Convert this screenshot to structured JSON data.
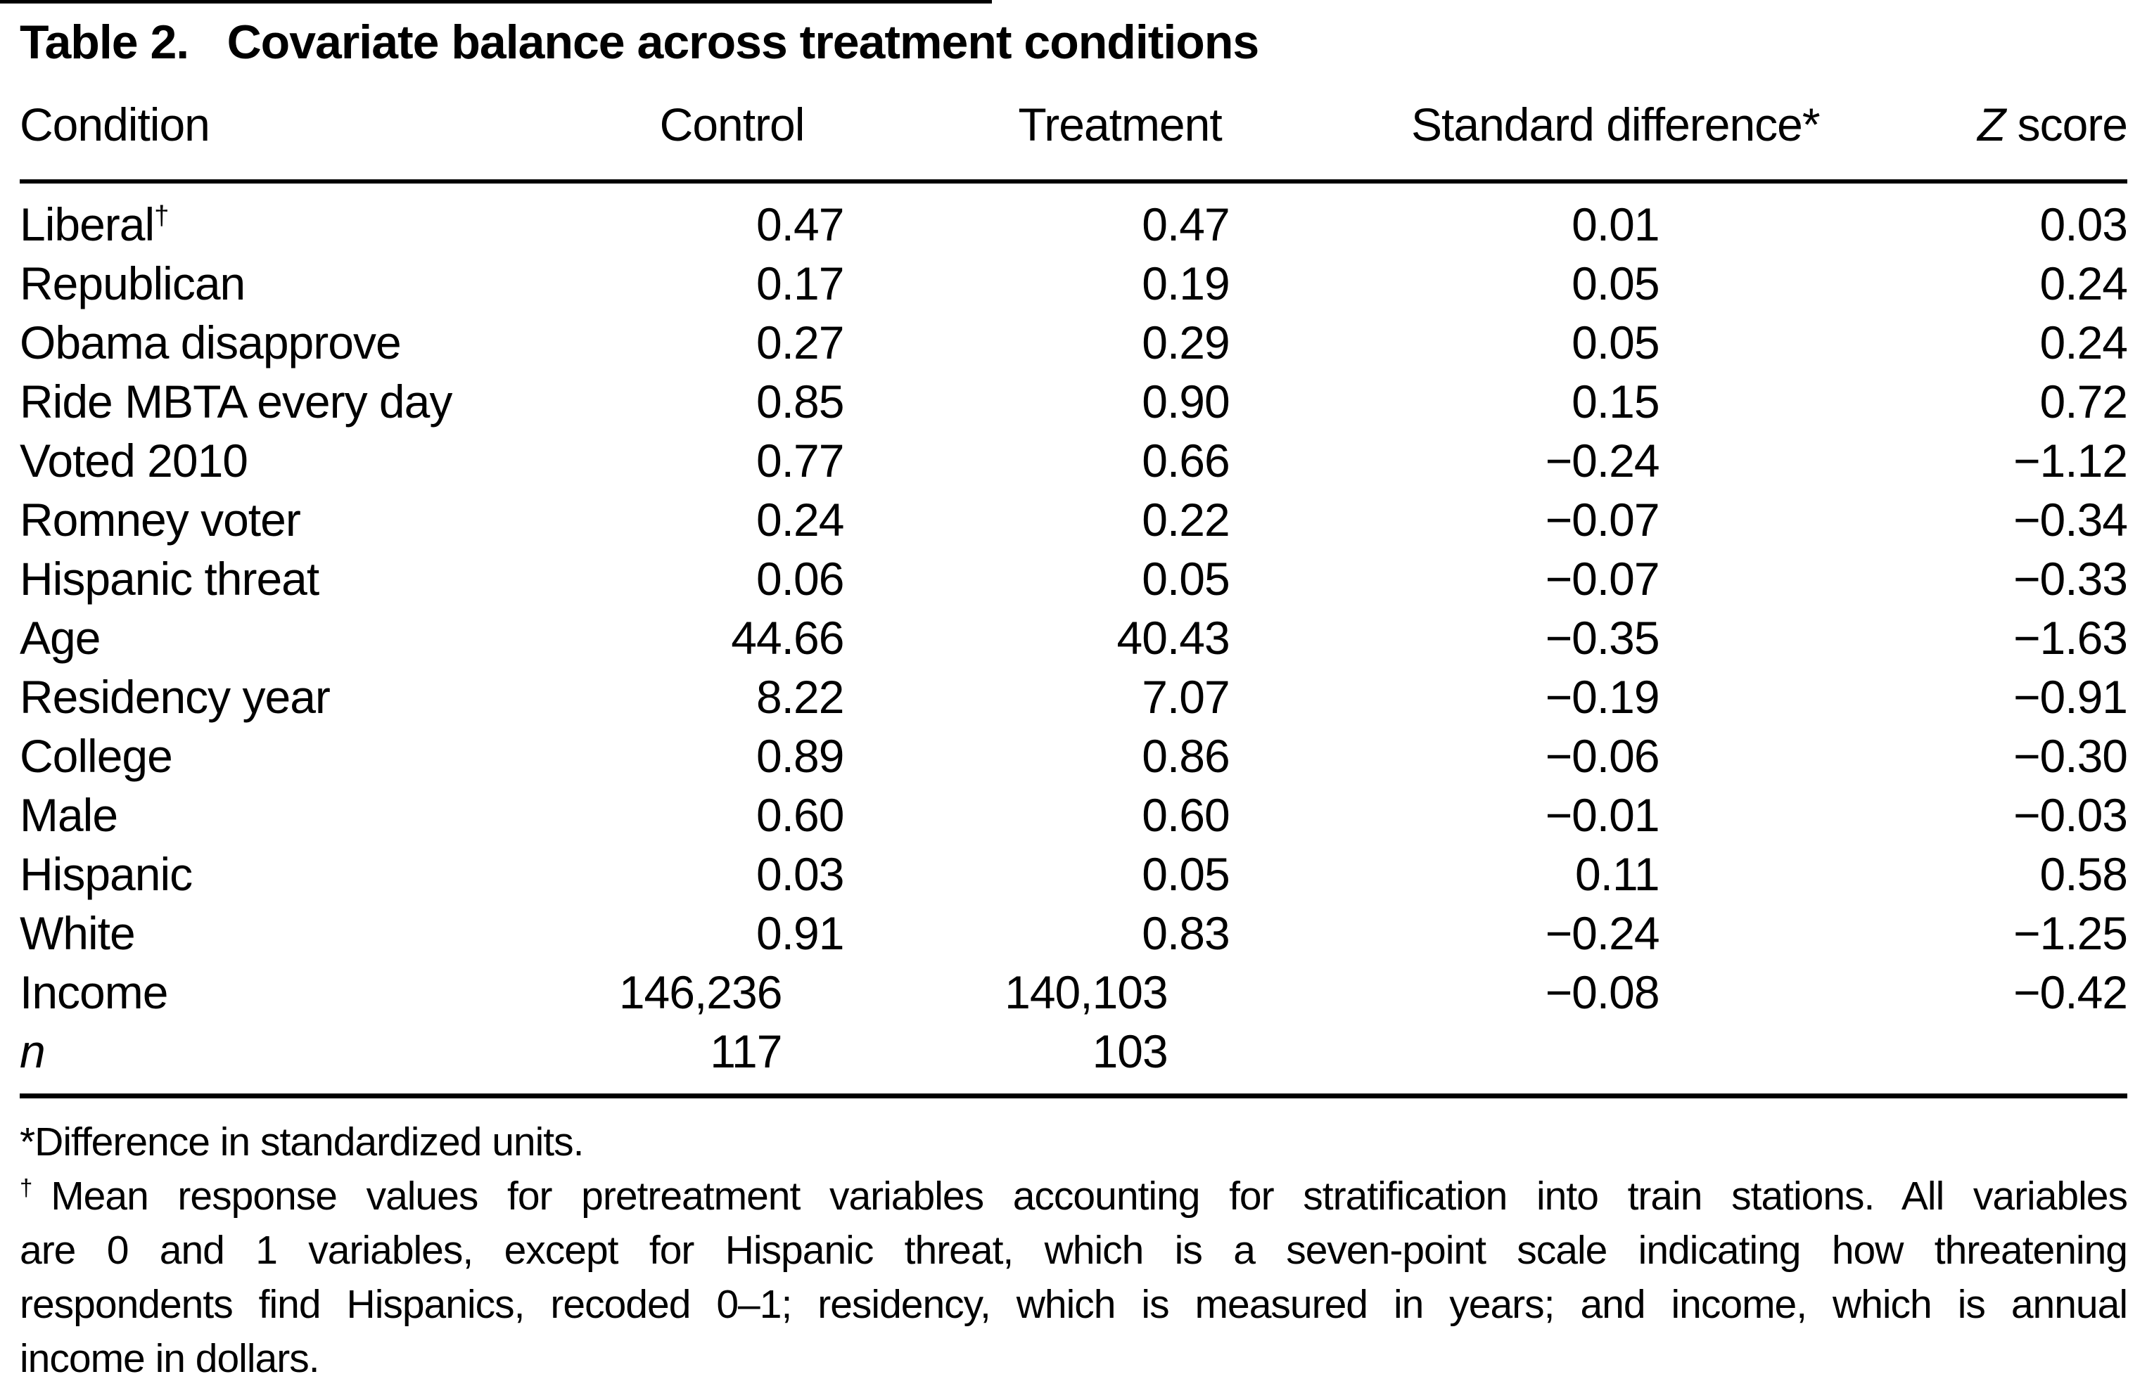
{
  "colors": {
    "text": "#000000",
    "background": "#ffffff",
    "rule": "#000000"
  },
  "title": {
    "label": "Table 2.",
    "text": "Covariate balance across treatment conditions"
  },
  "table": {
    "headers": {
      "condition": "Condition",
      "control": "Control",
      "treatment": "Treatment",
      "std_diff": "Standard difference*",
      "z_italic": "Z",
      "z_rest": " score"
    },
    "rows": [
      {
        "label": "Liberal",
        "sup": "†",
        "control": "0.47",
        "treatment": "0.47",
        "std_diff": "0.01",
        "z": "0.03"
      },
      {
        "label": "Republican",
        "control": "0.17",
        "treatment": "0.19",
        "std_diff": "0.05",
        "z": "0.24"
      },
      {
        "label": "Obama disapprove",
        "control": "0.27",
        "treatment": "0.29",
        "std_diff": "0.05",
        "z": "0.24"
      },
      {
        "label": "Ride MBTA every day",
        "control": "0.85",
        "treatment": "0.90",
        "std_diff": "0.15",
        "z": "0.72"
      },
      {
        "label": "Voted 2010",
        "control": "0.77",
        "treatment": "0.66",
        "std_diff": "−0.24",
        "z": "−1.12"
      },
      {
        "label": "Romney voter",
        "control": "0.24",
        "treatment": "0.22",
        "std_diff": "−0.07",
        "z": "−0.34"
      },
      {
        "label": "Hispanic threat",
        "control": "0.06",
        "treatment": "0.05",
        "std_diff": "−0.07",
        "z": "−0.33"
      },
      {
        "label": "Age",
        "control": "44.66",
        "treatment": "40.43",
        "std_diff": "−0.35",
        "z": "−1.63"
      },
      {
        "label": "Residency year",
        "control": "8.22",
        "treatment": "7.07",
        "std_diff": "−0.19",
        "z": "−0.91"
      },
      {
        "label": "College",
        "control": "0.89",
        "treatment": "0.86",
        "std_diff": "−0.06",
        "z": "−0.30"
      },
      {
        "label": "Male",
        "control": "0.60",
        "treatment": "0.60",
        "std_diff": "−0.01",
        "z": "−0.03"
      },
      {
        "label": "Hispanic",
        "control": "0.03",
        "treatment": "0.05",
        "std_diff": "0.11",
        "z": "0.58"
      },
      {
        "label": "White",
        "control": "0.91",
        "treatment": "0.83",
        "std_diff": "−0.24",
        "z": "−1.25"
      },
      {
        "label": "Income",
        "control": "146,236",
        "treatment": "140,103",
        "std_diff": "−0.08",
        "z": "−0.42"
      },
      {
        "label": "n",
        "control": "117",
        "treatment": "103",
        "std_diff": "",
        "z": ""
      }
    ]
  },
  "footnotes": {
    "star": "*Difference in standardized units.",
    "dagger_marker": "†",
    "dagger_lines": [
      "Mean response values for pretreatment variables accounting for stratification into train stations. All variables",
      "are 0 and 1 variables, except for Hispanic threat, which is a seven-point scale indicating how threatening",
      "respondents find Hispanics, recoded 0–1; residency, which is measured in years; and income, which is annual",
      "income in dollars."
    ]
  }
}
